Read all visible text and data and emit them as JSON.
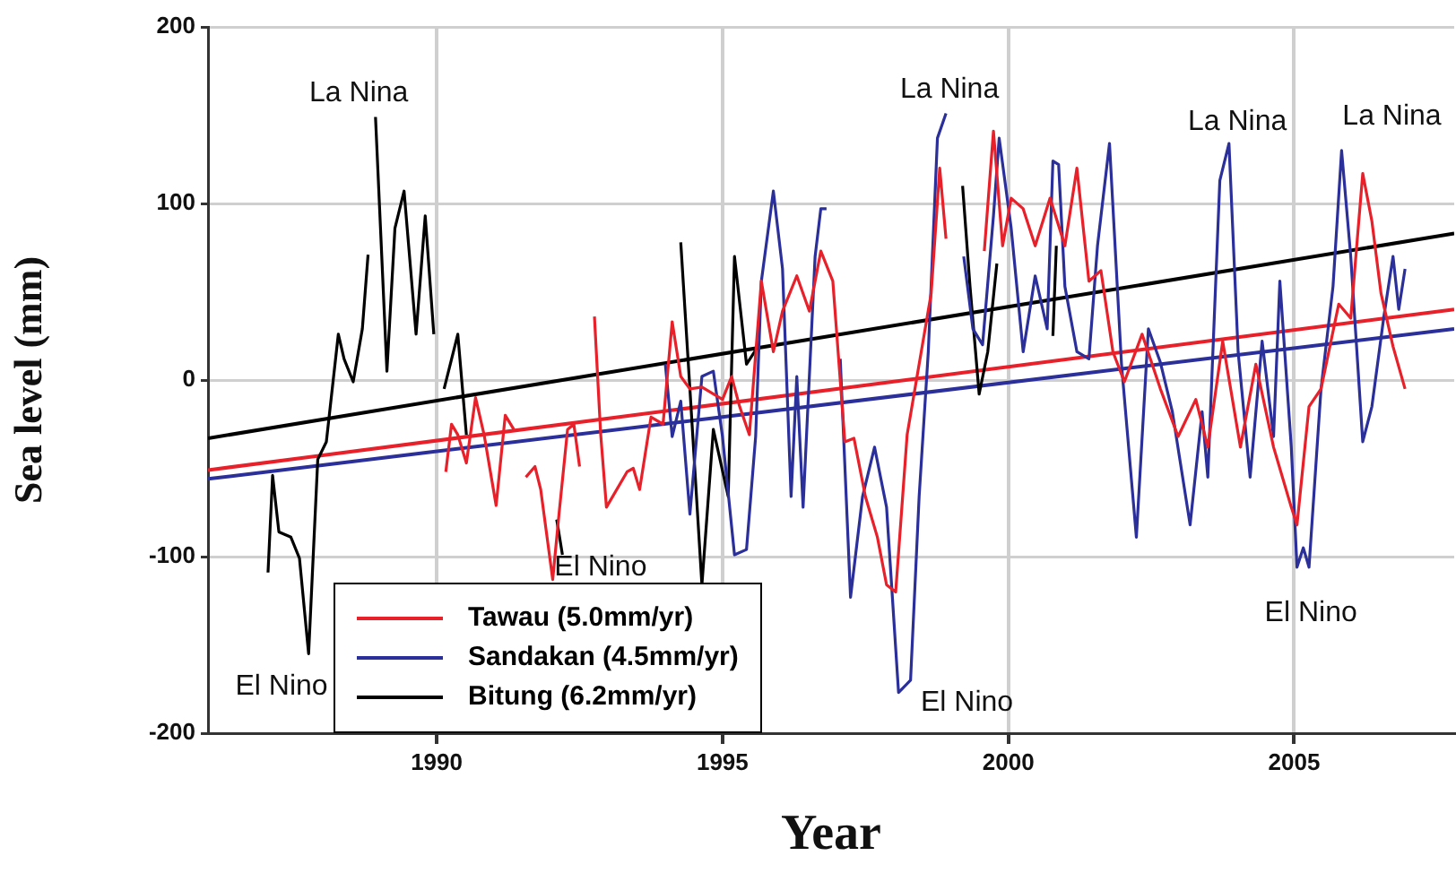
{
  "chart_data": {
    "type": "line",
    "xlabel": "Year",
    "ylabel": "Sea level (mm)",
    "xlim": [
      1986,
      2007.8
    ],
    "ylim": [
      -200,
      200
    ],
    "xticks": [
      1990,
      1995,
      2000,
      2005
    ],
    "yticks": [
      -200,
      -100,
      0,
      100,
      200
    ],
    "grid": true,
    "legend": "bottom left",
    "marker": "none",
    "line_style": "solid",
    "series": [
      {
        "name": "Tawau (5.0mm/yr)",
        "color": "#e8202a",
        "x": [
          1990.16,
          1990.26,
          1990.37,
          1990.52,
          1990.68,
          1990.83,
          1991.04,
          1991.2,
          1991.35,
          1991.45,
          1991.56,
          1991.72,
          1991.82,
          1992.03,
          1992.14,
          1992.29,
          1992.4,
          1992.5,
          1992.63,
          1992.76,
          1992.87,
          1992.97,
          1993.33,
          1993.44,
          1993.55,
          1993.75,
          1993.96,
          1994.12,
          1994.27,
          1994.43,
          1994.64,
          1995.0,
          1995.16,
          1995.3,
          1995.47,
          1995.68,
          1995.89,
          1996.05,
          1996.3,
          1996.52,
          1996.72,
          1996.93,
          1997.14,
          1997.3,
          1997.5,
          1997.71,
          1997.87,
          1998.03,
          1998.23,
          1998.44,
          1998.65,
          1998.8,
          1998.91,
          1999.2,
          1999.58,
          1999.74,
          1999.9,
          2000.05,
          2000.26,
          2000.47,
          2000.73,
          2000.99,
          2001.2,
          2001.41,
          2001.62,
          2001.83,
          2002.03,
          2002.34,
          2002.66,
          2002.97,
          2003.28,
          2003.49,
          2003.75,
          2004.06,
          2004.33,
          2004.64,
          2004.95,
          2005.05,
          2005.26,
          2005.47,
          2005.78,
          2005.99,
          2006.2,
          2006.36,
          2006.52,
          2006.73,
          2006.94
        ],
        "values": [
          -52,
          -25,
          -31,
          -47,
          -10,
          -31,
          -71,
          -20,
          -28,
          null,
          -55,
          -49,
          -62,
          -113,
          -76,
          -28,
          -25,
          -49,
          null,
          36,
          -31,
          -72,
          -52,
          -50,
          -62,
          -21,
          -25,
          33,
          2,
          -5,
          -4,
          -11,
          2,
          -15,
          -31,
          56,
          16,
          39,
          59,
          39,
          73,
          56,
          -35,
          -33,
          -66,
          -89,
          -116,
          -120,
          -31,
          9,
          49,
          120,
          80,
          null,
          73,
          141,
          76,
          103,
          97,
          76,
          103,
          76,
          120,
          56,
          62,
          16,
          -1,
          26,
          -5,
          -32,
          -11,
          -38,
          22,
          -38,
          9,
          -38,
          -72,
          -82,
          -15,
          -5,
          43,
          35,
          117,
          90,
          49,
          19,
          -5
        ]
      },
      {
        "name": "Sandakan (4.5mm/yr)",
        "color": "#2b2f9a",
        "x": [
          1994.0,
          1994.12,
          1994.27,
          1994.43,
          1994.64,
          1994.84,
          1995.0,
          1995.21,
          1995.42,
          1995.58,
          1995.68,
          1995.89,
          1996.05,
          1996.2,
          1996.3,
          1996.41,
          1996.62,
          1996.72,
          1996.82,
          1996.92,
          1997.06,
          1997.24,
          1997.45,
          1997.66,
          1997.87,
          1998.08,
          1998.29,
          1998.44,
          1998.6,
          1998.76,
          1998.91,
          1999.05,
          1999.22,
          1999.38,
          1999.55,
          1999.74,
          1999.84,
          2000.05,
          2000.26,
          2000.47,
          2000.68,
          2000.78,
          2000.88,
          2000.99,
          2001.2,
          2001.41,
          2001.56,
          2001.77,
          2001.98,
          2002.24,
          2002.45,
          2002.66,
          2002.87,
          2003.18,
          2003.39,
          2003.49,
          2003.7,
          2003.86,
          2004.02,
          2004.23,
          2004.44,
          2004.64,
          2004.75,
          2004.95,
          2005.05,
          2005.16,
          2005.26,
          2005.47,
          2005.68,
          2005.83,
          2005.99,
          2006.2,
          2006.36,
          2006.57,
          2006.73,
          2006.83,
          2006.94
        ],
        "values": [
          9,
          -32,
          -12,
          -76,
          2,
          5,
          -32,
          -99,
          -96,
          -32,
          56,
          107,
          63,
          -66,
          2,
          -72,
          70,
          97,
          97,
          null,
          12,
          -123,
          -66,
          -38,
          -72,
          -177,
          -170,
          -66,
          16,
          137,
          151,
          null,
          70,
          29,
          20,
          93,
          137,
          86,
          16,
          59,
          29,
          124,
          122,
          53,
          16,
          12,
          76,
          134,
          9,
          -89,
          29,
          10,
          -18,
          -82,
          -18,
          -55,
          113,
          134,
          16,
          -55,
          22,
          -32,
          56,
          -38,
          -106,
          -95,
          -106,
          -5,
          53,
          130,
          70,
          -35,
          -15,
          36,
          70,
          40,
          63
        ]
      },
      {
        "name": "Bitung (6.2mm/yr)",
        "color": "#000000",
        "x": [
          1987.05,
          1987.13,
          1987.24,
          1987.45,
          1987.6,
          1987.76,
          1987.92,
          1988.07,
          1988.28,
          1988.38,
          1988.54,
          1988.7,
          1988.8,
          1988.87,
          1988.93,
          1989.13,
          1989.27,
          1989.43,
          1989.64,
          1989.8,
          1989.95,
          1990.05,
          1990.13,
          1990.37,
          1990.52,
          1991.3,
          1992.1,
          1992.2,
          1993.5,
          1994.27,
          1994.43,
          1994.64,
          1994.84,
          1995.1,
          1995.21,
          1995.42,
          1995.58,
          1997.3,
          1999.2,
          1999.33,
          1999.49,
          1999.64,
          1999.8,
          2000.3,
          2000.78,
          2000.84
        ],
        "values": [
          -109,
          -54,
          -86,
          -89,
          -101,
          -155,
          -45,
          -35,
          26,
          12,
          -1,
          29,
          71,
          null,
          149,
          5,
          86,
          107,
          26,
          93,
          26,
          null,
          -5,
          26,
          -31,
          null,
          -79,
          -99,
          null,
          78,
          -5,
          -116,
          -28,
          -66,
          70,
          9,
          17,
          null,
          110,
          53,
          -8,
          16,
          66,
          null,
          25,
          76
        ]
      },
      {
        "type": "line",
        "color": "#e8202a",
        "x": [
          1986,
          2007.8
        ],
        "values": [
          -51,
          40
        ]
      },
      {
        "type": "line",
        "color": "#2b2f9a",
        "x": [
          1986,
          2007.8
        ],
        "values": [
          -56,
          29
        ]
      },
      {
        "type": "line",
        "color": "#000000",
        "x": [
          1986,
          2007.8
        ],
        "values": [
          -33,
          83
        ]
      }
    ],
    "annotations": [
      "La Nina",
      "El Nino",
      "El Nino",
      "La Nina",
      "El Nino",
      "La Nina",
      "El Nino",
      "La Nina"
    ]
  }
}
